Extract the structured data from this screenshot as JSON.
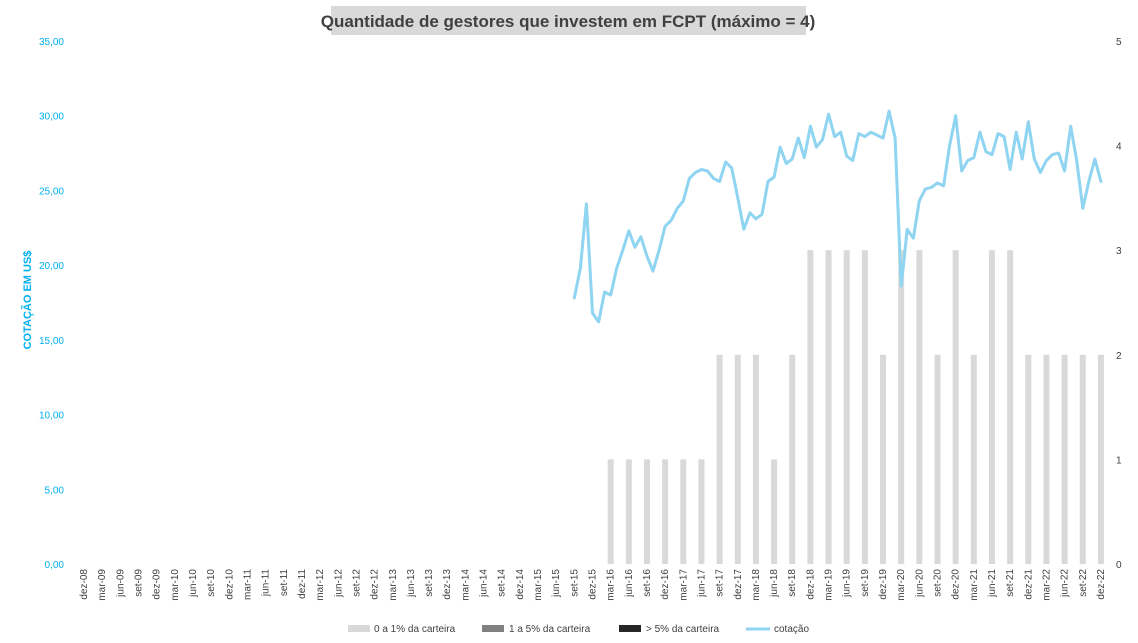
{
  "chart_data": {
    "type": "bar+line",
    "title": "Quantidade de gestores que investem em FCPT (máximo = 4)",
    "ylabel": "COTAÇÃO EM US$",
    "y_left": {
      "lim": [
        0,
        35
      ],
      "ticks": [
        "0,00",
        "5,00",
        "10,00",
        "15,00",
        "20,00",
        "25,00",
        "30,00",
        "35,00"
      ],
      "color": "#00b0f0"
    },
    "y_right": {
      "lim": [
        0,
        5
      ],
      "ticks": [
        "0",
        "1",
        "2",
        "3",
        "4",
        "5"
      ]
    },
    "grid": false,
    "legend_position": "bottom",
    "x_tick_labels": [
      "dez-08",
      "mar-09",
      "jun-09",
      "set-09",
      "dez-09",
      "mar-10",
      "jun-10",
      "set-10",
      "dez-10",
      "mar-11",
      "jun-11",
      "set-11",
      "dez-11",
      "mar-12",
      "jun-12",
      "set-12",
      "dez-12",
      "mar-13",
      "jun-13",
      "set-13",
      "dez-13",
      "mar-14",
      "jun-14",
      "set-14",
      "dez-14",
      "mar-15",
      "jun-15",
      "set-15",
      "dez-15",
      "mar-16",
      "jun-16",
      "set-16",
      "dez-16",
      "mar-17",
      "jun-17",
      "set-17",
      "dez-17",
      "mar-18",
      "jun-18",
      "set-18",
      "dez-18",
      "mar-19",
      "jun-19",
      "set-19",
      "dez-19",
      "mar-20",
      "jun-20",
      "set-20",
      "dez-20",
      "mar-21",
      "jun-21",
      "set-21",
      "dez-21",
      "mar-22",
      "jun-22",
      "set-22",
      "dez-22"
    ],
    "series": [
      {
        "name": "0 a 1% da carteira",
        "kind": "bar",
        "axis": "right",
        "color": "#d9d9d9",
        "values": [
          0,
          0,
          0,
          0,
          0,
          0,
          0,
          0,
          0,
          0,
          0,
          0,
          0,
          0,
          0,
          0,
          0,
          0,
          0,
          0,
          0,
          0,
          0,
          0,
          0,
          0,
          0,
          0,
          0,
          1,
          1,
          1,
          1,
          1,
          1,
          2,
          2,
          2,
          1,
          2,
          3,
          3,
          3,
          3,
          2,
          3,
          3,
          2,
          3,
          2,
          3,
          3,
          2,
          2,
          2,
          2,
          2
        ]
      },
      {
        "name": "1 a 5% da carteira",
        "kind": "bar",
        "axis": "right",
        "color": "#808080",
        "values": [
          0,
          0,
          0,
          0,
          0,
          0,
          0,
          0,
          0,
          0,
          0,
          0,
          0,
          0,
          0,
          0,
          0,
          0,
          0,
          0,
          0,
          0,
          0,
          0,
          0,
          0,
          0,
          0,
          0,
          0,
          0,
          0,
          0,
          0,
          0,
          0,
          0,
          0,
          0,
          0,
          0,
          0,
          0,
          0,
          0,
          0,
          0,
          0,
          0,
          0,
          0,
          0,
          0,
          0,
          0,
          0,
          0
        ]
      },
      {
        "name": "> 5% da carteira",
        "kind": "bar",
        "axis": "right",
        "color": "#262626",
        "values": [
          0,
          0,
          0,
          0,
          0,
          0,
          0,
          0,
          0,
          0,
          0,
          0,
          0,
          0,
          0,
          0,
          0,
          0,
          0,
          0,
          0,
          0,
          0,
          0,
          0,
          0,
          0,
          0,
          0,
          0,
          0,
          0,
          0,
          0,
          0,
          0,
          0,
          0,
          0,
          0,
          0,
          0,
          0,
          0,
          0,
          0,
          0,
          0,
          0,
          0,
          0,
          0,
          0,
          0,
          0,
          0,
          0
        ]
      },
      {
        "name": "cotação",
        "kind": "line",
        "axis": "left",
        "color": "#8fd4f0",
        "x_start_label": "set-15",
        "values": [
          17.8,
          19.8,
          24.1,
          16.8,
          16.2,
          18.2,
          18.0,
          19.8,
          21.0,
          22.3,
          21.2,
          21.9,
          20.6,
          19.6,
          21.0,
          22.6,
          23.0,
          23.8,
          24.3,
          25.8,
          26.2,
          26.4,
          26.3,
          25.8,
          25.6,
          26.9,
          26.5,
          24.5,
          22.4,
          23.5,
          23.1,
          23.4,
          25.6,
          25.9,
          27.9,
          26.8,
          27.1,
          28.5,
          27.2,
          29.3,
          27.9,
          28.4,
          30.1,
          28.6,
          28.9,
          27.3,
          27.0,
          28.8,
          28.6,
          28.9,
          28.7,
          28.5,
          30.3,
          28.5,
          18.6,
          22.4,
          21.8,
          24.3,
          25.1,
          25.2,
          25.5,
          25.3,
          28.0,
          30.0,
          26.3,
          27.0,
          27.2,
          28.9,
          27.6,
          27.4,
          28.8,
          28.6,
          26.4,
          28.9,
          27.1,
          29.6,
          27.1,
          26.2,
          27.0,
          27.4,
          27.5,
          26.3,
          29.3,
          27.0,
          23.8,
          25.6,
          27.1,
          25.6
        ]
      }
    ]
  }
}
